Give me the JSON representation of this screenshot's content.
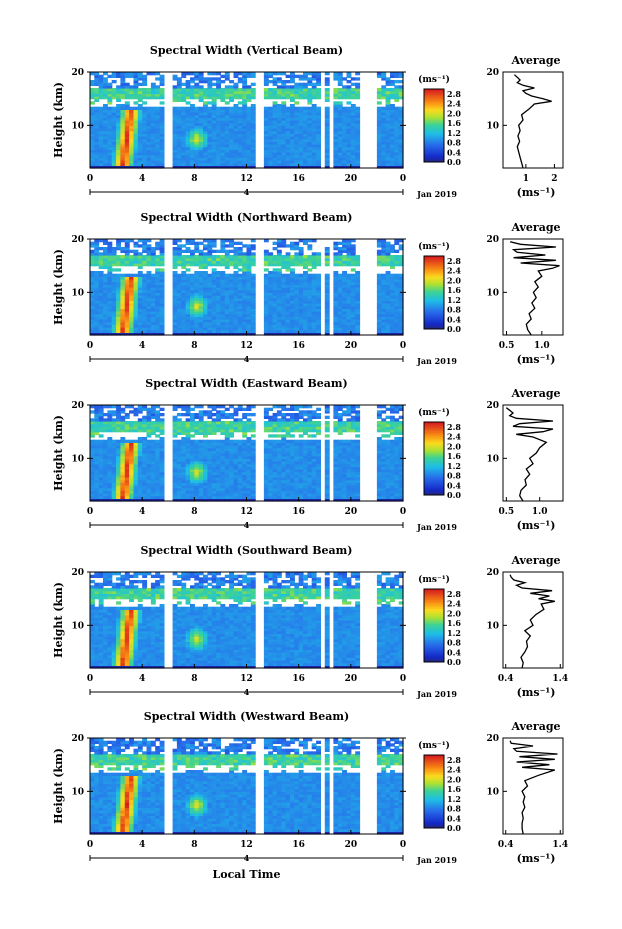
{
  "chart_data": [
    {
      "type": "heatmap",
      "title": "Spectral Width (Vertical Beam)",
      "ylabel": "Height (km)",
      "ylim": [
        2,
        20
      ],
      "yticks": [
        10,
        20
      ],
      "xticks": [
        "0",
        "4",
        "8",
        "12",
        "16",
        "20",
        "0"
      ],
      "xlim": [
        0,
        24
      ],
      "date_label": "Jan 2019",
      "day_marker": "4",
      "colorbar": {
        "unit": "(ms⁻¹)",
        "ticks": [
          "2.8",
          "2.4",
          "2.0",
          "1.6",
          "1.2",
          "0.8",
          "0.4",
          "0.0"
        ],
        "range": [
          0,
          3.0
        ]
      },
      "profile": {
        "type": "line",
        "title": "Average",
        "xlabel": "(ms⁻¹)",
        "xlim": [
          0.2,
          2.3
        ],
        "xticks": [
          "1",
          "2"
        ],
        "yticks": [
          10,
          20
        ],
        "height": [
          2,
          3,
          4,
          5,
          6,
          7,
          8,
          9,
          10,
          11,
          12,
          13,
          14,
          14.5,
          15,
          15.5,
          16,
          16.5,
          17,
          17.5,
          18,
          18.5,
          19,
          19.5
        ],
        "values": [
          0.9,
          0.85,
          0.8,
          0.75,
          0.7,
          0.78,
          0.72,
          0.8,
          0.75,
          0.9,
          0.85,
          1.1,
          1.3,
          1.9,
          1.6,
          1.2,
          1.0,
          0.9,
          1.3,
          0.9,
          0.7,
          0.8,
          0.7,
          0.6
        ]
      }
    },
    {
      "type": "heatmap",
      "title": "Spectral Width (Northward Beam)",
      "ylabel": "Height (km)",
      "ylim": [
        2,
        20
      ],
      "yticks": [
        10,
        20
      ],
      "xticks": [
        "0",
        "4",
        "8",
        "12",
        "16",
        "20",
        "0"
      ],
      "xlim": [
        0,
        24
      ],
      "date_label": "Jan 2019",
      "day_marker": "4",
      "colorbar": {
        "unit": "(ms⁻¹)",
        "ticks": [
          "2.8",
          "2.4",
          "2.0",
          "1.6",
          "1.2",
          "0.8",
          "0.4",
          "0.0"
        ],
        "range": [
          0,
          3.0
        ]
      },
      "profile": {
        "type": "line",
        "title": "Average",
        "xlabel": "(ms⁻¹)",
        "xlim": [
          0.45,
          1.3
        ],
        "xticks": [
          "0.5",
          "1.0"
        ],
        "yticks": [
          10,
          20
        ],
        "height": [
          2,
          3,
          4,
          5,
          6,
          7,
          8,
          9,
          10,
          11,
          12,
          13,
          14,
          14.5,
          15,
          15.5,
          16,
          16.5,
          17,
          17.5,
          18,
          18.5,
          19,
          19.5
        ],
        "values": [
          0.85,
          0.8,
          0.78,
          0.85,
          0.82,
          0.9,
          0.86,
          0.92,
          0.88,
          0.95,
          0.9,
          1.0,
          0.95,
          1.15,
          1.25,
          0.7,
          1.2,
          0.6,
          1.05,
          0.65,
          0.6,
          1.2,
          0.7,
          0.55
        ]
      }
    },
    {
      "type": "heatmap",
      "title": "Spectral Width (Eastward Beam)",
      "ylabel": "Height (km)",
      "ylim": [
        2,
        20
      ],
      "yticks": [
        10,
        20
      ],
      "xticks": [
        "0",
        "4",
        "8",
        "12",
        "16",
        "20",
        "0"
      ],
      "xlim": [
        0,
        24
      ],
      "date_label": "Jan 2019",
      "day_marker": "4",
      "colorbar": {
        "unit": "(ms⁻¹)",
        "ticks": [
          "2.8",
          "2.4",
          "2.0",
          "1.6",
          "1.2",
          "0.8",
          "0.4",
          "0.0"
        ],
        "range": [
          0,
          3.0
        ]
      },
      "profile": {
        "type": "line",
        "title": "Average",
        "xlabel": "(ms⁻¹)",
        "xlim": [
          0.45,
          1.35
        ],
        "xticks": [
          "0.5",
          "1.0"
        ],
        "yticks": [
          10,
          20
        ],
        "height": [
          2,
          3,
          4,
          5,
          6,
          7,
          8,
          9,
          10,
          11,
          12,
          13,
          14,
          14.5,
          15,
          15.5,
          16,
          16.5,
          17,
          17.5,
          18,
          18.5,
          19,
          19.5
        ],
        "values": [
          0.75,
          0.7,
          0.72,
          0.8,
          0.78,
          0.85,
          0.8,
          0.9,
          0.85,
          0.95,
          1.0,
          1.1,
          0.9,
          0.65,
          1.05,
          1.2,
          0.6,
          0.7,
          1.2,
          0.65,
          0.55,
          0.6,
          0.55,
          0.5
        ]
      }
    },
    {
      "type": "heatmap",
      "title": "Spectral Width (Southward Beam)",
      "ylabel": "Height (km)",
      "ylim": [
        2,
        20
      ],
      "yticks": [
        10,
        20
      ],
      "xticks": [
        "0",
        "4",
        "8",
        "12",
        "16",
        "20",
        "0"
      ],
      "xlim": [
        0,
        24
      ],
      "date_label": "Jan 2019",
      "day_marker": "4",
      "colorbar": {
        "unit": "(ms⁻¹)",
        "ticks": [
          "2.8",
          "2.4",
          "2.0",
          "1.6",
          "1.2",
          "0.8",
          "0.4",
          "0.0"
        ],
        "range": [
          0,
          3.0
        ]
      },
      "profile": {
        "type": "line",
        "title": "Average",
        "xlabel": "(ms⁻¹)",
        "xlim": [
          0.35,
          1.45
        ],
        "xticks": [
          "0.4",
          "1.4"
        ],
        "yticks": [
          10,
          20
        ],
        "height": [
          2,
          3,
          4,
          5,
          6,
          7,
          8,
          9,
          10,
          11,
          12,
          13,
          14,
          14.5,
          15,
          15.5,
          16,
          16.5,
          17,
          17.5,
          18,
          18.5,
          19,
          19.5
        ],
        "values": [
          0.7,
          0.72,
          0.68,
          0.75,
          0.8,
          0.78,
          0.85,
          0.75,
          0.9,
          0.85,
          0.95,
          1.1,
          1.05,
          1.3,
          1.0,
          1.2,
          0.85,
          1.25,
          0.7,
          0.6,
          0.75,
          0.55,
          0.5,
          0.48
        ]
      }
    },
    {
      "type": "heatmap",
      "title": "Spectral Width (Westward Beam)",
      "ylabel": "Height (km)",
      "ylim": [
        2,
        20
      ],
      "yticks": [
        10,
        20
      ],
      "xticks": [
        "0",
        "4",
        "8",
        "12",
        "16",
        "20",
        "0"
      ],
      "xlim": [
        0,
        24
      ],
      "date_label": "Jan 2019",
      "day_marker": "4",
      "colorbar": {
        "unit": "(ms⁻¹)",
        "ticks": [
          "2.8",
          "2.4",
          "2.0",
          "1.6",
          "1.2",
          "0.8",
          "0.4",
          "0.0"
        ],
        "range": [
          0,
          3.0
        ]
      },
      "profile": {
        "type": "line",
        "title": "Average",
        "xlabel": "(ms⁻¹)",
        "xlim": [
          0.35,
          1.45
        ],
        "xticks": [
          "0.4",
          "1.4"
        ],
        "yticks": [
          10,
          20
        ],
        "height": [
          2,
          3,
          4,
          5,
          6,
          7,
          8,
          9,
          10,
          11,
          12,
          13,
          14,
          14.5,
          15,
          15.5,
          16,
          16.5,
          17,
          17.5,
          18,
          18.5,
          19,
          19.5
        ],
        "values": [
          0.72,
          0.7,
          0.7,
          0.72,
          0.7,
          0.75,
          0.72,
          0.75,
          0.7,
          0.8,
          0.75,
          1.0,
          1.3,
          0.7,
          1.2,
          0.6,
          1.3,
          0.65,
          1.35,
          0.6,
          0.55,
          0.9,
          0.5,
          0.48
        ]
      }
    }
  ],
  "xlabel": "Local Time"
}
